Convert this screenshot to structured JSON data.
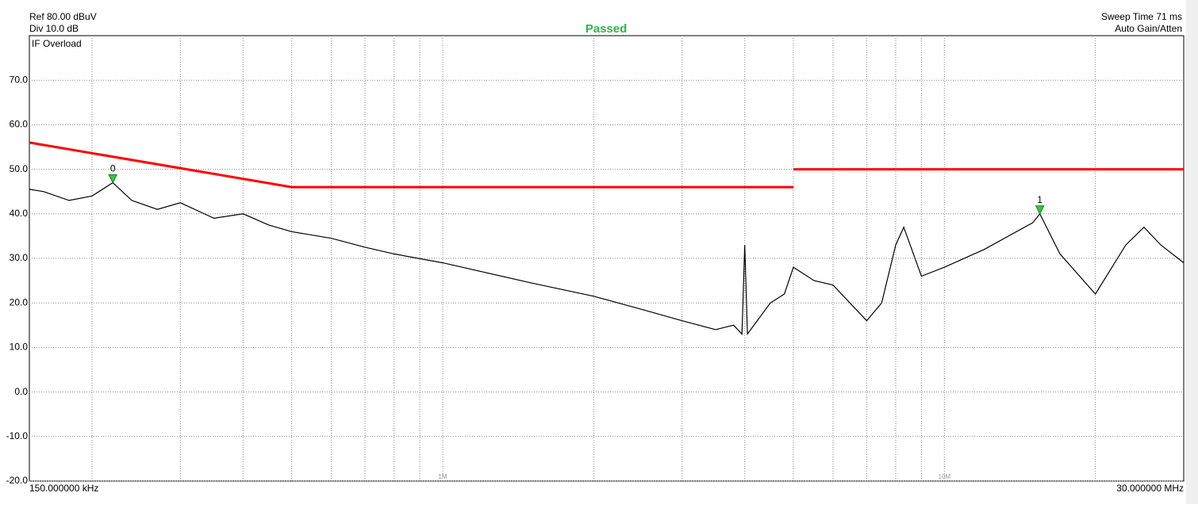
{
  "chart_data": {
    "type": "line",
    "annotations": {
      "ref": "Ref 80.00 dBuV",
      "div": "Div 10.0 dB",
      "status": "Passed",
      "status_color": "#2eb44a",
      "sweep": "Sweep Time 71 ms",
      "gain": "Auto Gain/Atten",
      "overload": "IF Overload"
    },
    "xscale": "log",
    "xlim": [
      150000,
      30000000
    ],
    "xticks": [
      {
        "value": 150000,
        "label": "150.000000 kHz"
      },
      {
        "value": 1000000,
        "label": "1M"
      },
      {
        "value": 10000000,
        "label": "10M"
      },
      {
        "value": 30000000,
        "label": "30.000000 MHz"
      }
    ],
    "xgrid": [
      200000,
      300000,
      400000,
      500000,
      600000,
      700000,
      800000,
      900000,
      1000000,
      2000000,
      3000000,
      4000000,
      5000000,
      6000000,
      7000000,
      8000000,
      9000000,
      10000000,
      20000000
    ],
    "ylim": [
      -20,
      80
    ],
    "yticks": [
      {
        "value": -20,
        "label": "-20.0"
      },
      {
        "value": -10,
        "label": "-10.0"
      },
      {
        "value": 0,
        "label": "0.0"
      },
      {
        "value": 10,
        "label": "10.0"
      },
      {
        "value": 20,
        "label": "20.0"
      },
      {
        "value": 30,
        "label": "30.0"
      },
      {
        "value": 40,
        "label": "40.0"
      },
      {
        "value": 50,
        "label": "50.0"
      },
      {
        "value": 60,
        "label": "60.0"
      },
      {
        "value": 70,
        "label": "70.0"
      }
    ],
    "grid": true,
    "series": [
      {
        "color": "#000000",
        "x": [
          150000,
          160000,
          180000,
          200000,
          220000,
          240000,
          270000,
          300000,
          350000,
          400000,
          450000,
          500000,
          600000,
          700000,
          800000,
          1000000,
          1500000,
          2000000,
          2500000,
          3000000,
          3500000,
          3800000,
          3950000,
          4000000,
          4050000,
          4500000,
          4800000,
          5000000,
          5500000,
          6000000,
          7000000,
          7500000,
          8000000,
          8300000,
          9000000,
          10000000,
          12000000,
          15000000,
          15500000,
          17000000,
          20000000,
          23000000,
          25000000,
          27000000,
          30000000
        ],
        "values": [
          45.5,
          45,
          43,
          44,
          47,
          43,
          41,
          42.5,
          39,
          40,
          37.5,
          36,
          34.5,
          32.5,
          31,
          29,
          24.5,
          21.5,
          18.5,
          16,
          14,
          15,
          13,
          33,
          13,
          20,
          22,
          28,
          25,
          24,
          16,
          20,
          33,
          37,
          26,
          28,
          32,
          38,
          40,
          31,
          22,
          33,
          37,
          33,
          29
        ]
      },
      {
        "color": "#ff0000",
        "x": [
          150000,
          500000,
          5000000,
          5000000,
          5000000,
          30000000
        ],
        "values": [
          56,
          46,
          46,
          null,
          50,
          50
        ]
      }
    ],
    "markers": [
      {
        "label": "0",
        "x": 220000,
        "value": 47,
        "color": "#2ecc40"
      },
      {
        "label": "1",
        "x": 15500000,
        "value": 40,
        "color": "#2ecc40"
      }
    ]
  }
}
